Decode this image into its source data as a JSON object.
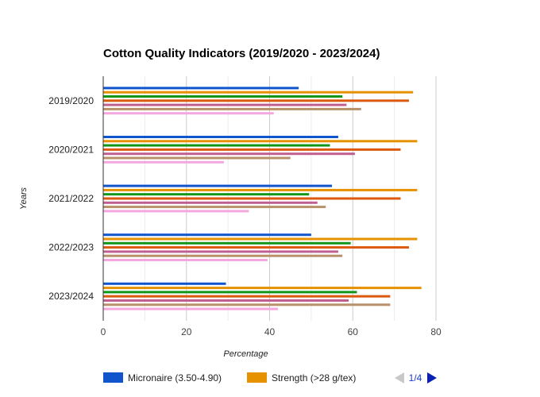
{
  "chart_data": {
    "type": "bar",
    "orientation": "horizontal",
    "title": "Cotton Quality Indicators (2019/2020 - 2023/2024)",
    "xlabel": "Percentage",
    "ylabel": "Years",
    "xlim": [
      0,
      80
    ],
    "xticks": [
      0,
      20,
      40,
      60,
      80
    ],
    "grid": true,
    "categories": [
      "2019/2020",
      "2020/2021",
      "2021/2022",
      "2022/2023",
      "2023/2024"
    ],
    "series": [
      {
        "name": "Micronaire (3.50-4.90)",
        "color": "#1155cc",
        "values": [
          47,
          56.5,
          55,
          50,
          29.5
        ]
      },
      {
        "name": "Strength (>28 g/tex)",
        "color": "#e69100",
        "values": [
          74.5,
          75.5,
          75.5,
          75.5,
          76.5
        ]
      },
      {
        "name": "",
        "color": "#109618",
        "values": [
          57.5,
          54.5,
          49.5,
          59.5,
          61
        ]
      },
      {
        "name": "",
        "color": "#dc5a0e",
        "values": [
          73.5,
          71.5,
          71.5,
          73.5,
          69
        ]
      },
      {
        "name": "",
        "color": "#c06090",
        "values": [
          58.5,
          60.5,
          51.5,
          56.5,
          59
        ]
      },
      {
        "name": "",
        "color": "#b8916a",
        "values": [
          62,
          45,
          53.5,
          57.5,
          69
        ]
      },
      {
        "name": "",
        "color": "#f4a6de",
        "values": [
          41,
          29,
          35,
          39.5,
          42
        ]
      }
    ],
    "legend": {
      "position": "bottom",
      "visible_entries": [
        "Micronaire (3.50-4.90)",
        "Strength (>28 g/tex)"
      ],
      "page_label": "1/4"
    }
  }
}
